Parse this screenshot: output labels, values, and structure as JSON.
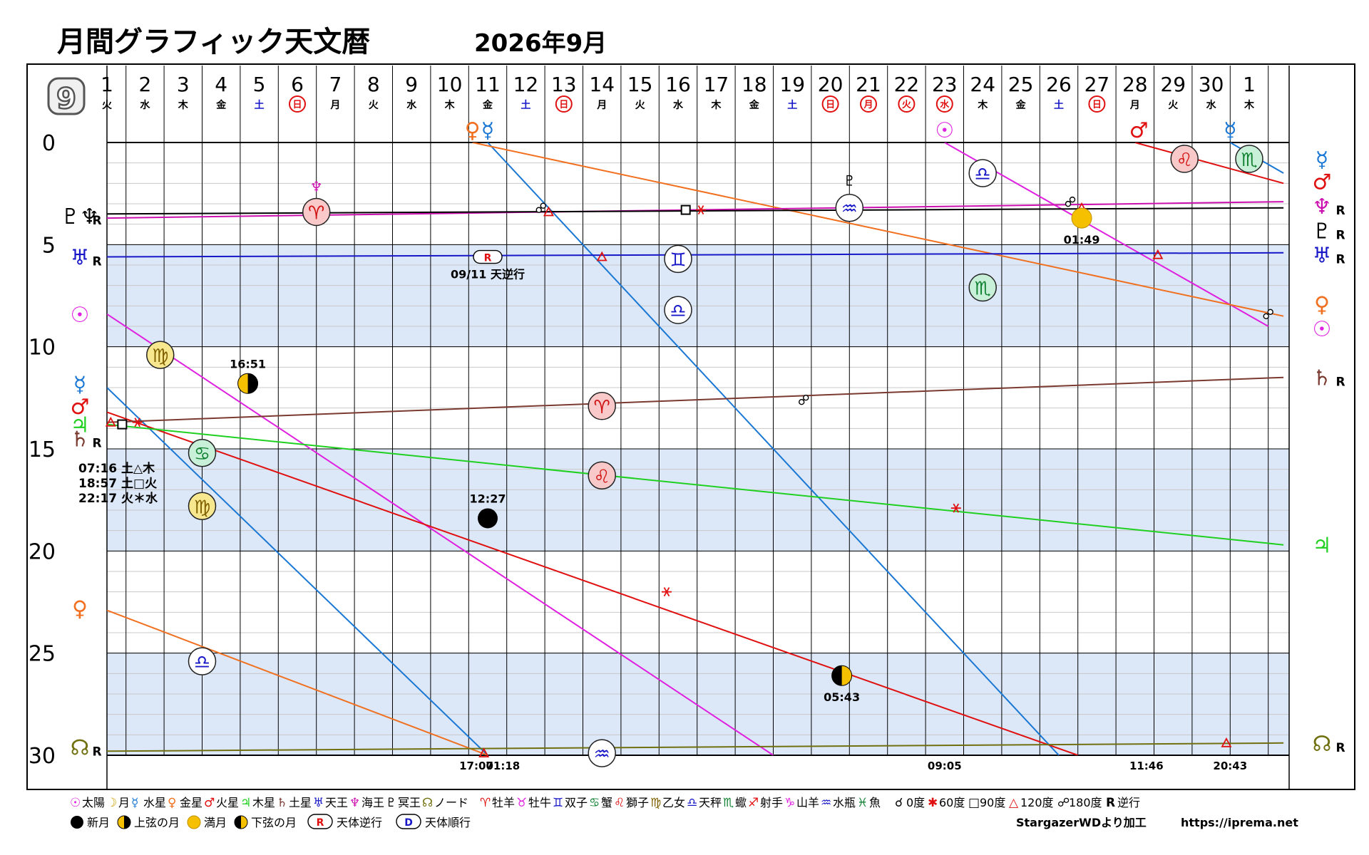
{
  "title": "月間グラフィック天文暦",
  "year_month": "2026年9月",
  "month_badge": "9",
  "chart_data": {
    "type": "line",
    "ylim": [
      0,
      30
    ],
    "yticks": [
      0,
      5,
      10,
      15,
      20,
      25,
      30
    ],
    "days": [
      {
        "d": "1",
        "w": "火",
        "t": "n"
      },
      {
        "d": "2",
        "w": "水",
        "t": "n"
      },
      {
        "d": "3",
        "w": "木",
        "t": "n"
      },
      {
        "d": "4",
        "w": "金",
        "t": "n"
      },
      {
        "d": "5",
        "w": "土",
        "t": "sat"
      },
      {
        "d": "6",
        "w": "日",
        "t": "hol"
      },
      {
        "d": "7",
        "w": "月",
        "t": "n"
      },
      {
        "d": "8",
        "w": "火",
        "t": "n"
      },
      {
        "d": "9",
        "w": "水",
        "t": "n"
      },
      {
        "d": "10",
        "w": "木",
        "t": "n"
      },
      {
        "d": "11",
        "w": "金",
        "t": "n"
      },
      {
        "d": "12",
        "w": "土",
        "t": "sat"
      },
      {
        "d": "13",
        "w": "日",
        "t": "hol"
      },
      {
        "d": "14",
        "w": "月",
        "t": "n"
      },
      {
        "d": "15",
        "w": "火",
        "t": "n"
      },
      {
        "d": "16",
        "w": "水",
        "t": "n"
      },
      {
        "d": "17",
        "w": "木",
        "t": "n"
      },
      {
        "d": "18",
        "w": "金",
        "t": "n"
      },
      {
        "d": "19",
        "w": "土",
        "t": "sat"
      },
      {
        "d": "20",
        "w": "日",
        "t": "hol"
      },
      {
        "d": "21",
        "w": "月",
        "t": "hol"
      },
      {
        "d": "22",
        "w": "火",
        "t": "hol"
      },
      {
        "d": "23",
        "w": "水",
        "t": "hol"
      },
      {
        "d": "24",
        "w": "木",
        "t": "n"
      },
      {
        "d": "25",
        "w": "金",
        "t": "n"
      },
      {
        "d": "26",
        "w": "土",
        "t": "sat"
      },
      {
        "d": "27",
        "w": "日",
        "t": "hol"
      },
      {
        "d": "28",
        "w": "月",
        "t": "n"
      },
      {
        "d": "29",
        "w": "火",
        "t": "n"
      },
      {
        "d": "30",
        "w": "水",
        "t": "n"
      },
      {
        "d": "1",
        "w": "木",
        "t": "n"
      }
    ],
    "series": [
      {
        "key": "sun",
        "color": "#e020e0",
        "segments": [
          [
            [
              1,
              8.4
            ],
            [
              18.5,
              30
            ]
          ],
          [
            [
              23,
              0
            ],
            [
              31.5,
              9
            ]
          ]
        ]
      },
      {
        "key": "mercury",
        "color": "#1a78d4",
        "segments": [
          [
            [
              1,
              12
            ],
            [
              11,
              30
            ]
          ],
          [
            [
              11,
              0
            ],
            [
              26,
              30
            ]
          ],
          [
            [
              30.5,
              0
            ],
            [
              31.9,
              1.5
            ]
          ]
        ]
      },
      {
        "key": "venus",
        "color": "#f07020",
        "segments": [
          [
            [
              1,
              22.9
            ],
            [
              11,
              30
            ]
          ],
          [
            [
              10.6,
              0
            ],
            [
              31.9,
              8.5
            ]
          ]
        ]
      },
      {
        "key": "mars",
        "color": "#e01010",
        "segments": [
          [
            [
              1,
              13.2
            ],
            [
              26.5,
              30
            ]
          ],
          [
            [
              28,
              0
            ],
            [
              31.9,
              2
            ]
          ]
        ]
      },
      {
        "key": "jupiter",
        "color": "#20d020",
        "segments": [
          [
            [
              1,
              13.8
            ],
            [
              31.9,
              19.7
            ]
          ]
        ]
      },
      {
        "key": "saturn",
        "color": "#7a3a30",
        "segments": [
          [
            [
              1,
              13.7
            ],
            [
              31.9,
              11.5
            ]
          ]
        ]
      },
      {
        "key": "uranus",
        "color": "#1818c8",
        "segments": [
          [
            [
              1,
              5.6
            ],
            [
              31.9,
              5.4
            ]
          ]
        ]
      },
      {
        "key": "neptune",
        "color": "#cc10b0",
        "segments": [
          [
            [
              1,
              3.7
            ],
            [
              31.9,
              2.9
            ]
          ]
        ]
      },
      {
        "key": "pluto",
        "color": "#000000",
        "segments": [
          [
            [
              1,
              3.5
            ],
            [
              31.9,
              3.2
            ]
          ]
        ]
      },
      {
        "key": "node",
        "color": "#707010",
        "segments": [
          [
            [
              1,
              29.8
            ],
            [
              31.9,
              29.4
            ]
          ]
        ]
      }
    ],
    "left_labels": [
      {
        "glyph": "♇♆",
        "y": 3.6,
        "color": "#000000",
        "r": "R"
      },
      {
        "glyph": "♅",
        "y": 5.6,
        "color": "#1818c8",
        "r": "R"
      },
      {
        "glyph": "☉",
        "y": 8.4,
        "color": "#e020e0",
        "r": ""
      },
      {
        "glyph": "☿",
        "y": 11.8,
        "color": "#1a78d4",
        "r": ""
      },
      {
        "glyph": "♂",
        "y": 12.9,
        "color": "#e01010",
        "r": ""
      },
      {
        "glyph": "♃",
        "y": 13.8,
        "color": "#20d020",
        "r": ""
      },
      {
        "glyph": "♄",
        "y": 14.5,
        "color": "#7a3a30",
        "r": "R"
      },
      {
        "glyph": "♀",
        "y": 22.8,
        "color": "#f07020",
        "r": ""
      },
      {
        "glyph": "☊",
        "y": 29.6,
        "color": "#707010",
        "r": "R"
      }
    ],
    "right_labels": [
      {
        "glyph": "☿",
        "y": 0.8,
        "color": "#1a78d4",
        "r": ""
      },
      {
        "glyph": "♂",
        "y": 1.9,
        "color": "#e01010",
        "r": ""
      },
      {
        "glyph": "♆",
        "y": 3.1,
        "color": "#cc10b0",
        "r": "R"
      },
      {
        "glyph": "♇",
        "y": 4.3,
        "color": "#000000",
        "r": "R"
      },
      {
        "glyph": "♅",
        "y": 5.5,
        "color": "#1818c8",
        "r": "R"
      },
      {
        "glyph": "♀",
        "y": 7.9,
        "color": "#f07020",
        "r": ""
      },
      {
        "glyph": "☉",
        "y": 9.1,
        "color": "#e020e0",
        "r": ""
      },
      {
        "glyph": "♄",
        "y": 11.5,
        "color": "#7a3a30",
        "r": "R"
      },
      {
        "glyph": "♃",
        "y": 19.7,
        "color": "#20d020",
        "r": ""
      },
      {
        "glyph": "☊",
        "y": 29.4,
        "color": "#707010",
        "r": "R"
      }
    ],
    "top_planets": [
      {
        "glyph": "♀",
        "x": 10.6,
        "color": "#f07020"
      },
      {
        "glyph": "☿",
        "x": 11.0,
        "color": "#1a78d4"
      },
      {
        "glyph": "☉",
        "x": 23.0,
        "color": "#e020e0"
      },
      {
        "glyph": "♂",
        "x": 28.1,
        "color": "#e01010"
      },
      {
        "glyph": "☿",
        "x": 30.5,
        "color": "#1a78d4"
      }
    ],
    "planet_markers": [
      {
        "glyph": "♆",
        "x": 6.5,
        "y": 2.2,
        "color": "#cc10b0"
      },
      {
        "glyph": "♇",
        "x": 20.5,
        "y": 1.9,
        "color": "#000000"
      }
    ],
    "signs": [
      {
        "glyph": "♈",
        "x": 6.5,
        "y": 3.4,
        "bg": "#f9c8c8",
        "fg": "#d01010"
      },
      {
        "glyph": "♒",
        "x": 20.5,
        "y": 3.2,
        "bg": "#ffffff",
        "fg": "#1818c8"
      },
      {
        "glyph": "♎",
        "x": 24.0,
        "y": 1.5,
        "bg": "#ffffff",
        "fg": "#1818c8"
      },
      {
        "glyph": "♌",
        "x": 29.3,
        "y": 0.8,
        "bg": "#f9c8c8",
        "fg": "#d01010"
      },
      {
        "glyph": "♏",
        "x": 31.0,
        "y": 0.8,
        "bg": "#c8f0d8",
        "fg": "#108030"
      },
      {
        "glyph": "♊",
        "x": 16.0,
        "y": 5.7,
        "bg": "#ffffff",
        "fg": "#1818c8"
      },
      {
        "glyph": "♎",
        "x": 16.0,
        "y": 8.2,
        "bg": "#ffffff",
        "fg": "#1818c8"
      },
      {
        "glyph": "♏",
        "x": 24.0,
        "y": 7.1,
        "bg": "#c8f0d8",
        "fg": "#108030"
      },
      {
        "glyph": "♍",
        "x": 2.4,
        "y": 10.4,
        "bg": "#f7e890",
        "fg": "#806000"
      },
      {
        "glyph": "♈",
        "x": 14.0,
        "y": 12.9,
        "bg": "#f9c8c8",
        "fg": "#d01010"
      },
      {
        "glyph": "♋",
        "x": 3.5,
        "y": 15.2,
        "bg": "#c8f0d8",
        "fg": "#108030"
      },
      {
        "glyph": "♌",
        "x": 14.0,
        "y": 16.3,
        "bg": "#f9c8c8",
        "fg": "#d01010"
      },
      {
        "glyph": "♍",
        "x": 3.5,
        "y": 17.8,
        "bg": "#f7e890",
        "fg": "#806000"
      },
      {
        "glyph": "♎",
        "x": 3.5,
        "y": 25.4,
        "bg": "#ffffff",
        "fg": "#1818c8"
      },
      {
        "glyph": "♒",
        "x": 14.0,
        "y": 29.9,
        "bg": "#ffffff",
        "fg": "#1818c8"
      }
    ],
    "moon_phases": [
      {
        "phase": "first-quarter",
        "x": 4.7,
        "y": 11.8,
        "label": "16:51",
        "label_pos": "above"
      },
      {
        "phase": "new",
        "x": 11.0,
        "y": 18.4,
        "label": "12:27",
        "label_pos": "above"
      },
      {
        "phase": "last-quarter",
        "x": 20.3,
        "y": 26.1,
        "label": "05:43",
        "label_pos": "below"
      },
      {
        "phase": "full",
        "x": 26.6,
        "y": 3.7,
        "label": "01:49",
        "label_pos": "below"
      }
    ],
    "aspects": [
      {
        "type": "trine",
        "x": 1.1,
        "y": 13.7
      },
      {
        "type": "square",
        "x": 1.4,
        "y": 13.8
      },
      {
        "type": "sextile",
        "x": 1.8,
        "y": 13.7
      },
      {
        "type": "opposition",
        "x": 12.4,
        "y": 3.2
      },
      {
        "type": "trine",
        "x": 12.6,
        "y": 3.4
      },
      {
        "type": "trine",
        "x": 14.0,
        "y": 5.6
      },
      {
        "type": "square",
        "x": 16.2,
        "y": 3.3
      },
      {
        "type": "sextile",
        "x": 16.6,
        "y": 3.3
      },
      {
        "type": "opposition",
        "x": 19.3,
        "y": 12.6
      },
      {
        "type": "sextile",
        "x": 15.7,
        "y": 22.0
      },
      {
        "type": "sextile",
        "x": 23.3,
        "y": 17.9
      },
      {
        "type": "opposition",
        "x": 26.3,
        "y": 2.9
      },
      {
        "type": "trine",
        "x": 26.6,
        "y": 3.2
      },
      {
        "type": "trine",
        "x": 28.6,
        "y": 5.5
      },
      {
        "type": "opposition",
        "x": 31.5,
        "y": 8.4
      },
      {
        "type": "trine",
        "x": 30.4,
        "y": 29.4
      },
      {
        "type": "trine",
        "x": 10.9,
        "y": 29.9
      }
    ],
    "retrograde_event": {
      "x": 11.0,
      "y": 5.6,
      "badge": "R",
      "label": "09/11 天逆行"
    },
    "aspect_notes": [
      "07:16 土△木",
      "18:57 土□火",
      "22:17 火＊水"
    ],
    "bottom_times": [
      {
        "x": 10.7,
        "label": "17:07"
      },
      {
        "x": 11.4,
        "label": "01:18"
      },
      {
        "x": 23.0,
        "label": "09:05"
      },
      {
        "x": 28.3,
        "label": "11:46"
      },
      {
        "x": 30.5,
        "label": "20:43"
      }
    ]
  },
  "legend": {
    "row1_planets": [
      {
        "glyph": "☉",
        "name": "太陽",
        "color": "#e020e0"
      },
      {
        "glyph": "☽",
        "name": "月",
        "color": "#d0a000"
      },
      {
        "glyph": "☿",
        "name": "水星",
        "color": "#1a78d4"
      },
      {
        "glyph": "♀",
        "name": "金星",
        "color": "#f07020"
      },
      {
        "glyph": "♂",
        "name": "火星",
        "color": "#e01010"
      },
      {
        "glyph": "♃",
        "name": "木星",
        "color": "#20d020"
      },
      {
        "glyph": "♄",
        "name": "土星",
        "color": "#7a3a30"
      },
      {
        "glyph": "♅",
        "name": "天王",
        "color": "#1818c8"
      },
      {
        "glyph": "♆",
        "name": "海王",
        "color": "#cc10b0"
      },
      {
        "glyph": "♇",
        "name": "冥王",
        "color": "#000000"
      },
      {
        "glyph": "☊",
        "name": "ノード",
        "color": "#707010"
      }
    ],
    "row1_signs": [
      {
        "glyph": "♈",
        "name": "牡羊",
        "color": "#e01010"
      },
      {
        "glyph": "♉",
        "name": "牡牛",
        "color": "#e020e0"
      },
      {
        "glyph": "♊",
        "name": "双子",
        "color": "#1818c8"
      },
      {
        "glyph": "♋",
        "name": "蟹",
        "color": "#108030"
      },
      {
        "glyph": "♌",
        "name": "獅子",
        "color": "#e01010"
      },
      {
        "glyph": "♍",
        "name": "乙女",
        "color": "#806000"
      },
      {
        "glyph": "♎",
        "name": "天秤",
        "color": "#1818c8"
      },
      {
        "glyph": "♏",
        "name": "蠍",
        "color": "#108030"
      },
      {
        "glyph": "♐",
        "name": "射手",
        "color": "#e01010"
      },
      {
        "glyph": "♑",
        "name": "山羊",
        "color": "#e020e0"
      },
      {
        "glyph": "♒",
        "name": "水瓶",
        "color": "#1818c8"
      },
      {
        "glyph": "♓",
        "name": "魚",
        "color": "#108030"
      }
    ],
    "row1_aspects": [
      {
        "glyph": "☌",
        "name": "0度",
        "color": "#000000"
      },
      {
        "glyph": "✱",
        "name": "60度",
        "color": "#e01010"
      },
      {
        "glyph": "□",
        "name": "90度",
        "color": "#000000"
      },
      {
        "glyph": "△",
        "name": "120度",
        "color": "#e01010"
      },
      {
        "glyph": "☍",
        "name": "180度",
        "color": "#000000"
      },
      {
        "glyph": "R",
        "name": "逆行",
        "color": "#000000"
      }
    ],
    "row2": [
      {
        "phase": "new",
        "name": "新月"
      },
      {
        "phase": "first-quarter",
        "name": "上弦の月"
      },
      {
        "phase": "full",
        "name": "満月"
      },
      {
        "phase": "last-quarter",
        "name": "下弦の月"
      }
    ],
    "row2_badges": [
      {
        "badge": "R",
        "name": "天体逆行",
        "color": "#e01010"
      },
      {
        "badge": "D",
        "name": "天体順行",
        "color": "#1818c8"
      }
    ],
    "credit": "StargazerWDより加工",
    "url": "https://iprema.net"
  }
}
